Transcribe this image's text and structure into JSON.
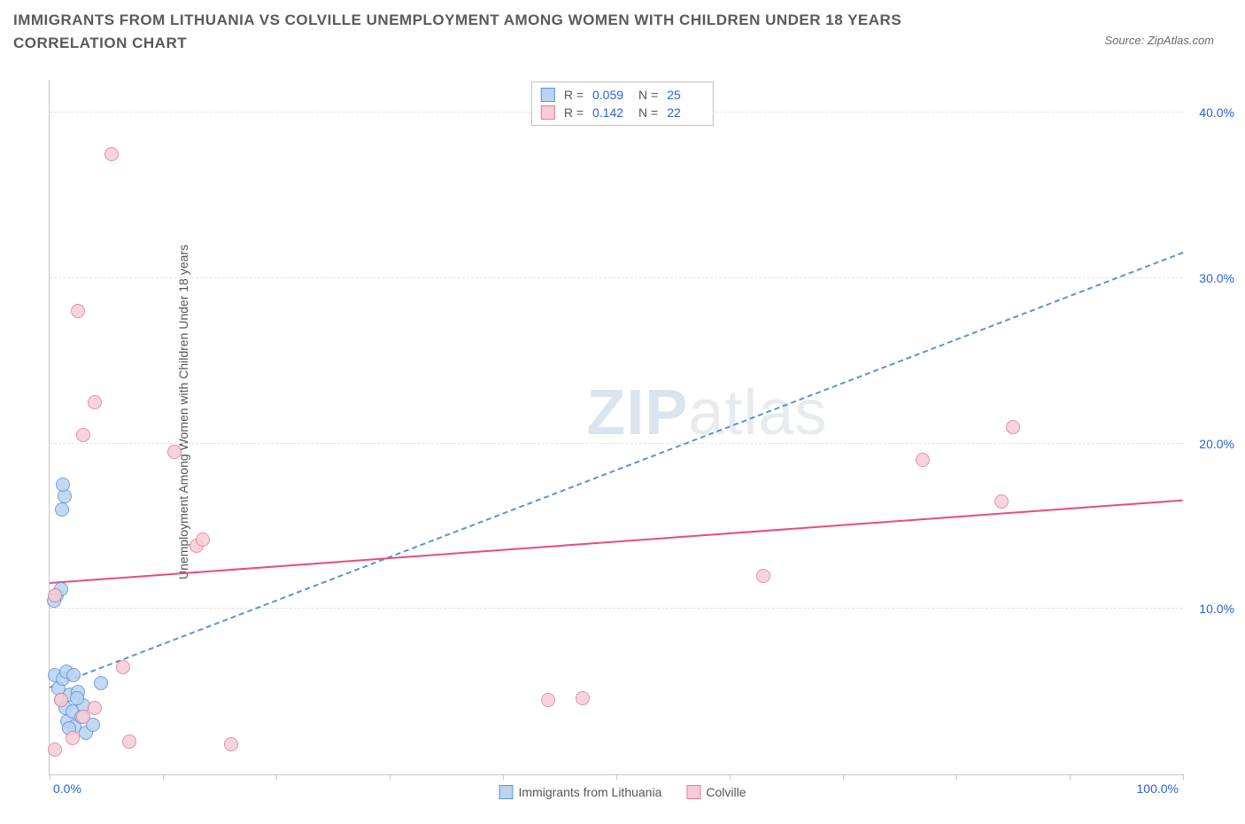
{
  "title": "IMMIGRANTS FROM LITHUANIA VS COLVILLE UNEMPLOYMENT AMONG WOMEN WITH CHILDREN UNDER 18 YEARS CORRELATION CHART",
  "source_label": "Source: ZipAtlas.com",
  "watermark_a": "ZIP",
  "watermark_b": "atlas",
  "chart": {
    "type": "scatter",
    "ylabel": "Unemployment Among Women with Children Under 18 years",
    "xlim": [
      0,
      100
    ],
    "ylim": [
      0,
      42
    ],
    "y_ticks": [
      10,
      20,
      30,
      40
    ],
    "y_tick_labels": [
      "10.0%",
      "20.0%",
      "30.0%",
      "40.0%"
    ],
    "x_tick_positions": [
      0,
      10,
      20,
      30,
      40,
      50,
      60,
      70,
      80,
      90,
      100
    ],
    "x_tick_labels": {
      "min": "0.0%",
      "max": "100.0%"
    },
    "background_color": "#ffffff",
    "grid_color": "#e2e2e2",
    "axis_color": "#c8c8c8",
    "marker_radius": 8,
    "series": [
      {
        "name": "Immigrants from Lithuania",
        "fill": "#b9d3f0",
        "stroke": "#5a93d6",
        "stats": {
          "R": "0.059",
          "N": "25"
        },
        "trend": {
          "x1": 0,
          "y1": 5.2,
          "x2": 100,
          "y2": 31.5,
          "style": "dashed",
          "color": "#5a93d6"
        },
        "points": [
          [
            0.5,
            6.0
          ],
          [
            0.8,
            5.2
          ],
          [
            1.0,
            4.5
          ],
          [
            1.2,
            5.8
          ],
          [
            1.4,
            4.0
          ],
          [
            1.6,
            3.2
          ],
          [
            1.8,
            4.8
          ],
          [
            2.0,
            3.8
          ],
          [
            2.2,
            2.9
          ],
          [
            2.5,
            5.0
          ],
          [
            2.8,
            3.5
          ],
          [
            3.0,
            4.2
          ],
          [
            3.2,
            2.5
          ],
          [
            1.5,
            6.2
          ],
          [
            2.4,
            4.6
          ],
          [
            0.6,
            10.8
          ],
          [
            1.0,
            11.2
          ],
          [
            1.1,
            16.0
          ],
          [
            1.3,
            16.8
          ],
          [
            1.2,
            17.5
          ],
          [
            4.5,
            5.5
          ],
          [
            3.8,
            3.0
          ],
          [
            0.4,
            10.5
          ],
          [
            2.1,
            6.0
          ],
          [
            1.7,
            2.8
          ]
        ]
      },
      {
        "name": "Colville",
        "fill": "#f6cdd7",
        "stroke": "#e67a9a",
        "stats": {
          "R": "0.142",
          "N": "22"
        },
        "trend": {
          "x1": 0,
          "y1": 11.5,
          "x2": 100,
          "y2": 16.5,
          "style": "solid",
          "color": "#e94b7b"
        },
        "points": [
          [
            0.5,
            1.5
          ],
          [
            2.0,
            2.2
          ],
          [
            3.0,
            3.5
          ],
          [
            4.0,
            4.0
          ],
          [
            7.0,
            2.0
          ],
          [
            6.5,
            6.5
          ],
          [
            0.5,
            10.8
          ],
          [
            3.0,
            20.5
          ],
          [
            4.0,
            22.5
          ],
          [
            2.5,
            28.0
          ],
          [
            5.5,
            37.5
          ],
          [
            11.0,
            19.5
          ],
          [
            13.0,
            13.8
          ],
          [
            13.5,
            14.2
          ],
          [
            16.0,
            1.8
          ],
          [
            44.0,
            4.5
          ],
          [
            47.0,
            4.6
          ],
          [
            63.0,
            12.0
          ],
          [
            77.0,
            19.0
          ],
          [
            85.0,
            21.0
          ],
          [
            84.0,
            16.5
          ],
          [
            1.0,
            4.5
          ]
        ]
      }
    ]
  },
  "stats_box": {
    "r_label": "R =",
    "n_label": "N ="
  },
  "legend": {
    "series_a": "Immigrants from Lithuania",
    "series_b": "Colville"
  }
}
